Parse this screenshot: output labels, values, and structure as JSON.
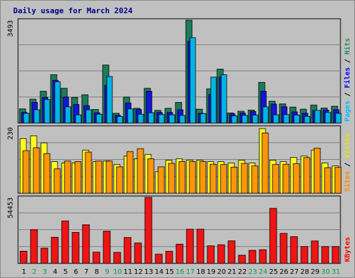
{
  "chart_data": {
    "type": "bar",
    "title": "Daily usage for March 2024",
    "categories": [
      "1",
      "2",
      "3",
      "4",
      "5",
      "6",
      "7",
      "8",
      "9",
      "10",
      "11",
      "12",
      "13",
      "14",
      "15",
      "16",
      "17",
      "18",
      "19",
      "20",
      "21",
      "22",
      "23",
      "24",
      "25",
      "26",
      "27",
      "28",
      "29",
      "30",
      "31"
    ],
    "weekend_days": [
      "2",
      "3",
      "9",
      "10",
      "16",
      "17",
      "23",
      "24",
      "30",
      "31"
    ],
    "panels": [
      {
        "name": "hits-files-pages",
        "max_label": "3493",
        "ylim": [
          0,
          3493
        ],
        "axis_label_parts": [
          {
            "text": "Pages",
            "color": "#00bfff"
          },
          {
            "text": " / ",
            "color": "#000000"
          },
          {
            "text": "Files",
            "color": "#0000ff"
          },
          {
            "text": " / ",
            "color": "#000000"
          },
          {
            "text": "Hits",
            "color": "#2e8b57"
          }
        ],
        "series": [
          {
            "name": "Hits",
            "color": "#1e7b5a",
            "values": [
              480,
              810,
              1080,
              1640,
              1180,
              870,
              960,
              460,
              1970,
              330,
              880,
              500,
              1180,
              430,
              500,
              700,
              3490,
              470,
              1160,
              1830,
              340,
              400,
              440,
              1380,
              740,
              650,
              540,
              470,
              610,
              510,
              570
            ]
          },
          {
            "name": "Files",
            "color": "#1414dc",
            "values": [
              360,
              700,
              870,
              1450,
              880,
              630,
              590,
              350,
              1280,
              260,
              680,
              460,
              1080,
              360,
              360,
              450,
              2780,
              330,
              970,
              1560,
              310,
              340,
              390,
              1080,
              640,
              550,
              380,
              330,
              420,
              440,
              450
            ]
          },
          {
            "name": "Pages",
            "color": "#00b4e6",
            "values": [
              330,
              450,
              800,
              1400,
              550,
              280,
              450,
              300,
              1580,
              220,
              480,
              300,
              350,
              290,
              280,
              260,
              2900,
              320,
              1560,
              1640,
              240,
              260,
              270,
              550,
              280,
              290,
              270,
              230,
              430,
              360,
              330
            ]
          }
        ]
      },
      {
        "name": "visits-sites",
        "max_label": "230",
        "ylim": [
          0,
          230
        ],
        "axis_label_parts": [
          {
            "text": "Sites",
            "color": "#ff8c00"
          },
          {
            "text": " / ",
            "color": "#000000"
          },
          {
            "text": "Visits",
            "color": "#e6e600"
          }
        ],
        "series": [
          {
            "name": "Visits",
            "color": "#ffff1e",
            "values": [
              190,
              200,
              175,
              110,
              105,
              105,
              150,
              110,
              113,
              100,
              130,
              120,
              135,
              75,
              115,
              120,
              115,
              115,
              110,
              110,
              105,
              115,
              105,
              225,
              115,
              110,
              125,
              130,
              150,
              105,
              95
            ]
          },
          {
            "name": "Sites",
            "color": "#ff960a",
            "values": [
              148,
              158,
              138,
              85,
              112,
              110,
              143,
              112,
              112,
              92,
              145,
              155,
              120,
              92,
              104,
              110,
              110,
              110,
              101,
              100,
              91,
              104,
              95,
              210,
              100,
              101,
              103,
              124,
              157,
              89,
              90
            ]
          }
        ]
      },
      {
        "name": "kbytes",
        "max_label": "54453",
        "ylim": [
          0,
          54453
        ],
        "axis_label_parts": [
          {
            "text": "KBytes",
            "color": "#ff0000"
          }
        ],
        "series": [
          {
            "name": "KBytes",
            "color": "#f01414",
            "values": [
              10100,
              27900,
              12600,
              21600,
              35000,
              25600,
              31900,
              9300,
              26600,
              9100,
              21400,
              16800,
              54450,
              7600,
              10000,
              15900,
              28200,
              28200,
              14500,
              15400,
              18600,
              6800,
              10800,
              11300,
              45400,
              24800,
              22100,
              13900,
              18500,
              13900,
              13900
            ]
          }
        ]
      }
    ],
    "colors": {
      "background": "#c0c0c0",
      "weekday_label": "#000000",
      "weekend_label": "#00a050"
    }
  }
}
